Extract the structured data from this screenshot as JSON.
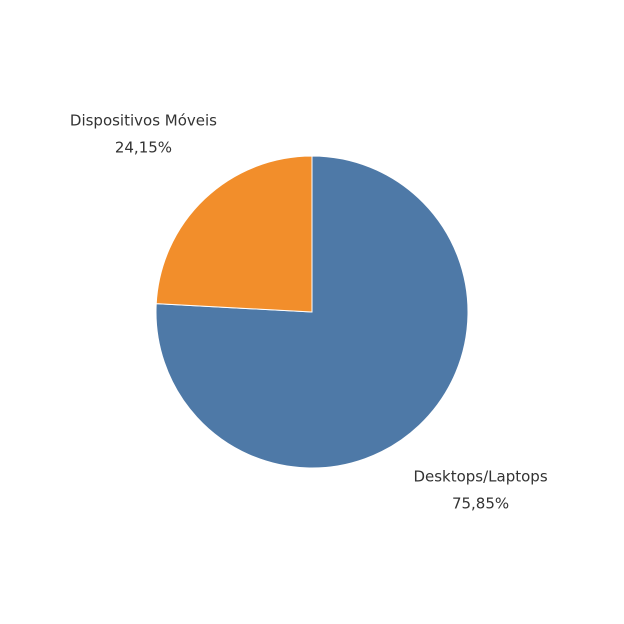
{
  "chart_data": {
    "type": "pie",
    "categories": [
      "Desktops/Laptops",
      "Dispositivos Móveis"
    ],
    "values": [
      75.85,
      24.15
    ],
    "value_labels": [
      "75,85%",
      "24,15%"
    ],
    "colors": [
      "#4e79a7",
      "#f28e2b"
    ]
  }
}
